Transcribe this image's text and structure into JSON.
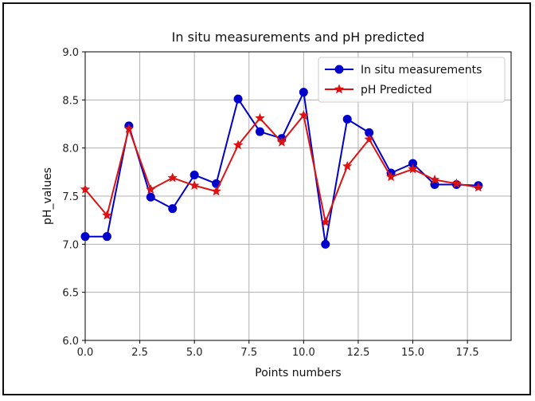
{
  "chart_data": {
    "type": "line",
    "title": "In situ measurements and pH predicted",
    "xlabel": "Points numbers",
    "ylabel": "pH_values",
    "xlim": [
      0,
      19.5
    ],
    "ylim": [
      6.0,
      9.0
    ],
    "x_ticks": [
      0.0,
      2.5,
      5.0,
      7.5,
      10.0,
      12.5,
      15.0,
      17.5
    ],
    "x_tick_labels": [
      "0.0",
      "2.5",
      "5.0",
      "7.5",
      "10.0",
      "12.5",
      "15.0",
      "17.5"
    ],
    "y_ticks": [
      6.0,
      6.5,
      7.0,
      7.5,
      8.0,
      8.5,
      9.0
    ],
    "y_tick_labels": [
      "6.0",
      "6.5",
      "7.0",
      "7.5",
      "8.0",
      "8.5",
      "9.0"
    ],
    "grid": true,
    "legend_position": "top-right",
    "x": [
      0,
      1,
      2,
      3,
      4,
      5,
      6,
      7,
      8,
      9,
      10,
      11,
      12,
      13,
      14,
      15,
      16,
      17,
      18
    ],
    "series": [
      {
        "name": "In situ measurements",
        "color": "#0000cc",
        "marker": "circle",
        "values": [
          7.08,
          7.08,
          8.23,
          7.49,
          7.37,
          7.72,
          7.63,
          8.51,
          8.17,
          8.1,
          8.58,
          7.0,
          8.3,
          8.16,
          7.74,
          7.84,
          7.62,
          7.62,
          7.61
        ]
      },
      {
        "name": "pH Predicted",
        "color": "#dd1111",
        "marker": "star",
        "values": [
          7.57,
          7.3,
          8.2,
          7.57,
          7.69,
          7.61,
          7.55,
          8.03,
          8.31,
          8.06,
          8.34,
          7.23,
          7.81,
          8.09,
          7.7,
          7.78,
          7.67,
          7.63,
          7.59
        ]
      }
    ]
  }
}
